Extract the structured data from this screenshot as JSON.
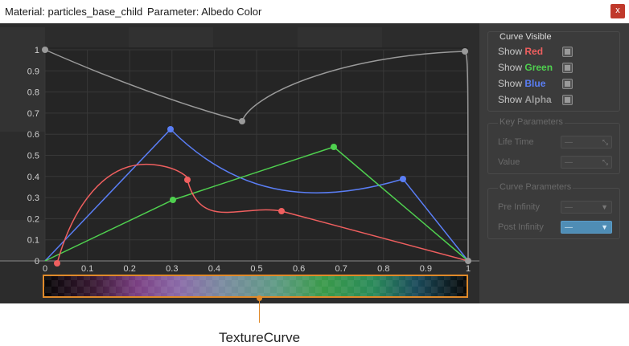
{
  "titlebar": {
    "material": "Material: particles_base_child",
    "parameter": "Parameter: Albedo Color",
    "close_label": "x"
  },
  "graph": {
    "y_ticks": [
      "1",
      "0.9",
      "0.8",
      "0.7",
      "0.6",
      "0.5",
      "0.4",
      "0.3",
      "0.2",
      "0.1",
      "0"
    ],
    "x_ticks": [
      "0",
      "0.1",
      "0.2",
      "0.3",
      "0.4",
      "0.5",
      "0.6",
      "0.7",
      "0.8",
      "0.9",
      "1"
    ],
    "colors": {
      "red": "#ef5f5f",
      "green": "#4fd04f",
      "blue": "#5a7ef5",
      "alpha": "#9a9a9a"
    }
  },
  "panel": {
    "curve_visible": {
      "title": "Curve Visible",
      "show": "Show",
      "red": "Red",
      "green": "Green",
      "blue": "Blue",
      "alpha": "Alpha"
    },
    "key_params": {
      "title": "Key Parameters",
      "life_time": "Life Time",
      "value": "Value",
      "placeholder": "—"
    },
    "curve_params": {
      "title": "Curve Parameters",
      "pre_infinity": "Pre Infinity",
      "post_infinity": "Post Infinity",
      "placeholder": "—"
    }
  },
  "annotation": {
    "label": "TextureCurve"
  }
}
